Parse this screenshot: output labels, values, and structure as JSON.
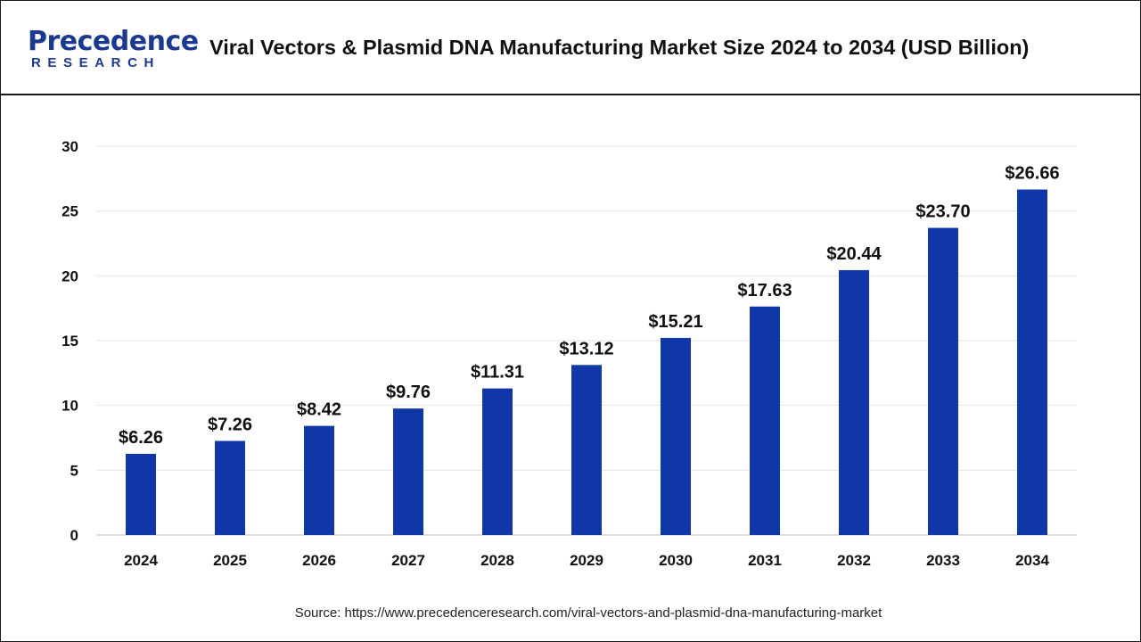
{
  "header": {
    "logo_main": "Precedence",
    "logo_sub": "RESEARCH",
    "title": "Viral Vectors & Plasmid DNA Manufacturing Market Size 2024 to 2034 (USD Billion)"
  },
  "footer": {
    "source": "Source: https://www.precedenceresearch.com/viral-vectors-and-plasmid-dna-manufacturing-market"
  },
  "colors": {
    "bar": "#0f37a8",
    "brand": "#1b3a8f",
    "grid": "#e6e6e6"
  },
  "chart_data": {
    "type": "bar",
    "title": "Viral Vectors & Plasmid DNA Manufacturing Market Size 2024 to 2034 (USD Billion)",
    "categories": [
      "2024",
      "2025",
      "2026",
      "2027",
      "2028",
      "2029",
      "2030",
      "2031",
      "2032",
      "2033",
      "2034"
    ],
    "values": [
      6.26,
      7.26,
      8.42,
      9.76,
      11.31,
      13.12,
      15.21,
      17.63,
      20.44,
      23.7,
      26.66
    ],
    "data_labels": [
      "$6.26",
      "$7.26",
      "$8.42",
      "$9.76",
      "$11.31",
      "$13.12",
      "$15.21",
      "$17.63",
      "$20.44",
      "$23.70",
      "$26.66"
    ],
    "y_ticks": [
      0,
      5,
      10,
      15,
      20,
      25,
      30
    ],
    "ylim": [
      0,
      30
    ],
    "xlabel": "",
    "ylabel": "",
    "grid": true,
    "legend": "none"
  }
}
